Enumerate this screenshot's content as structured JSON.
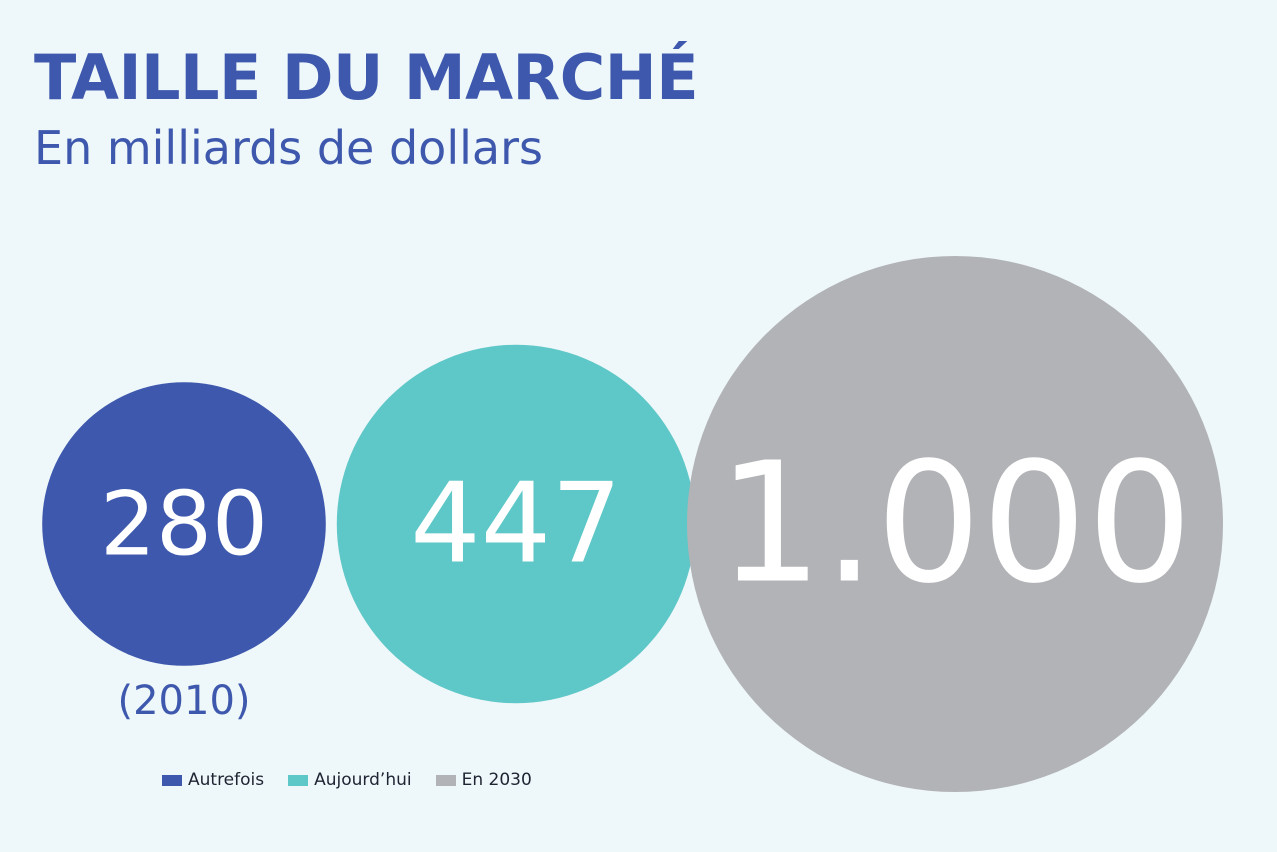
{
  "chart_data": {
    "type": "bubble",
    "title": "TAILLE DU MARCHÉ",
    "subtitle": "En milliards de dollars",
    "colors": {
      "title": "#3d58ad",
      "bubble_text": "#ffffff",
      "note_text": "#3d58ad"
    },
    "series": [
      {
        "name": "Autrefois",
        "value": 280,
        "label": "280",
        "note": "(2010)",
        "color": "#3d58ad"
      },
      {
        "name": "Aujourd’hui",
        "value": 447,
        "label": "447",
        "note": "",
        "color": "#5ec7c7"
      },
      {
        "name": "En 2030",
        "value": 1000,
        "label": "1.000",
        "note": "",
        "color": "#b2b3b7"
      }
    ],
    "legend": {
      "position": "bottom-left",
      "entries": [
        "Autrefois",
        "Aujourd’hui",
        "En 2030"
      ]
    },
    "grid": false
  }
}
